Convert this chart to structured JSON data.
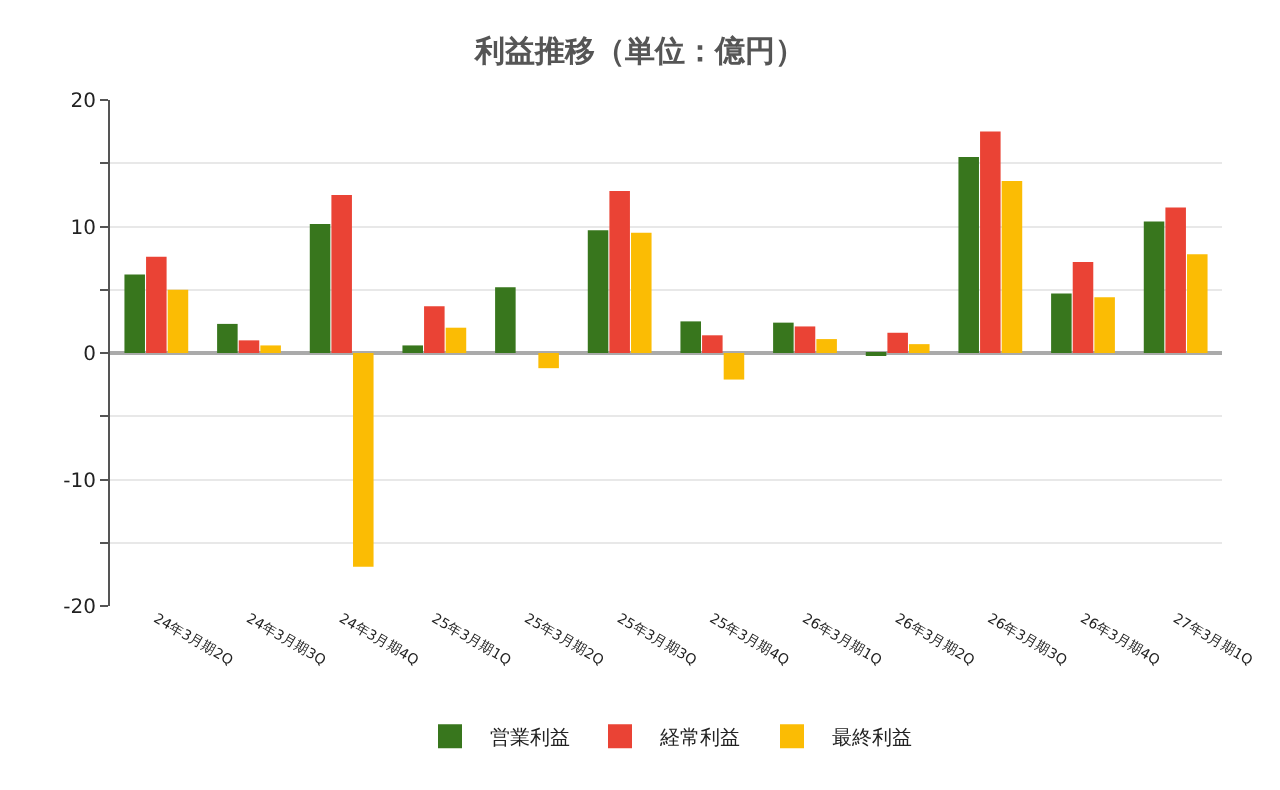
{
  "chart_data": {
    "type": "bar",
    "title": "利益推移（単位：億円）",
    "categories": [
      "24年3月期2Q",
      "24年3月期3Q",
      "24年3月期4Q",
      "25年3月期1Q",
      "25年3月期2Q",
      "25年3月期3Q",
      "25年3月期4Q",
      "26年3月期1Q",
      "26年3月期2Q",
      "26年3月期3Q",
      "26年3月期4Q",
      "27年3月期1Q"
    ],
    "series": [
      {
        "name": "営業利益",
        "color": "#38761d",
        "values": [
          6.2,
          2.3,
          10.2,
          0.6,
          5.2,
          9.7,
          2.5,
          2.4,
          -0.1,
          15.5,
          4.7,
          10.4
        ]
      },
      {
        "name": "経常利益",
        "color": "#ea4335",
        "values": [
          7.6,
          1.0,
          12.5,
          3.7,
          null,
          12.8,
          1.4,
          2.1,
          1.6,
          17.5,
          7.2,
          11.5
        ]
      },
      {
        "name": "最終利益",
        "color": "#fbbc04",
        "values": [
          5.0,
          0.6,
          -16.9,
          2.0,
          -1.2,
          9.5,
          -2.1,
          1.1,
          0.7,
          13.6,
          4.4,
          7.8
        ]
      }
    ],
    "ylim": [
      -20,
      20
    ],
    "yticks": [
      -20,
      {
        "value": -15,
        "label": null
      },
      -10,
      {
        "value": -5,
        "label": null
      },
      0,
      {
        "value": 5,
        "label": null
      },
      10,
      {
        "value": 15,
        "label": null
      },
      20
    ],
    "grid": "y",
    "legend": "bottom"
  }
}
